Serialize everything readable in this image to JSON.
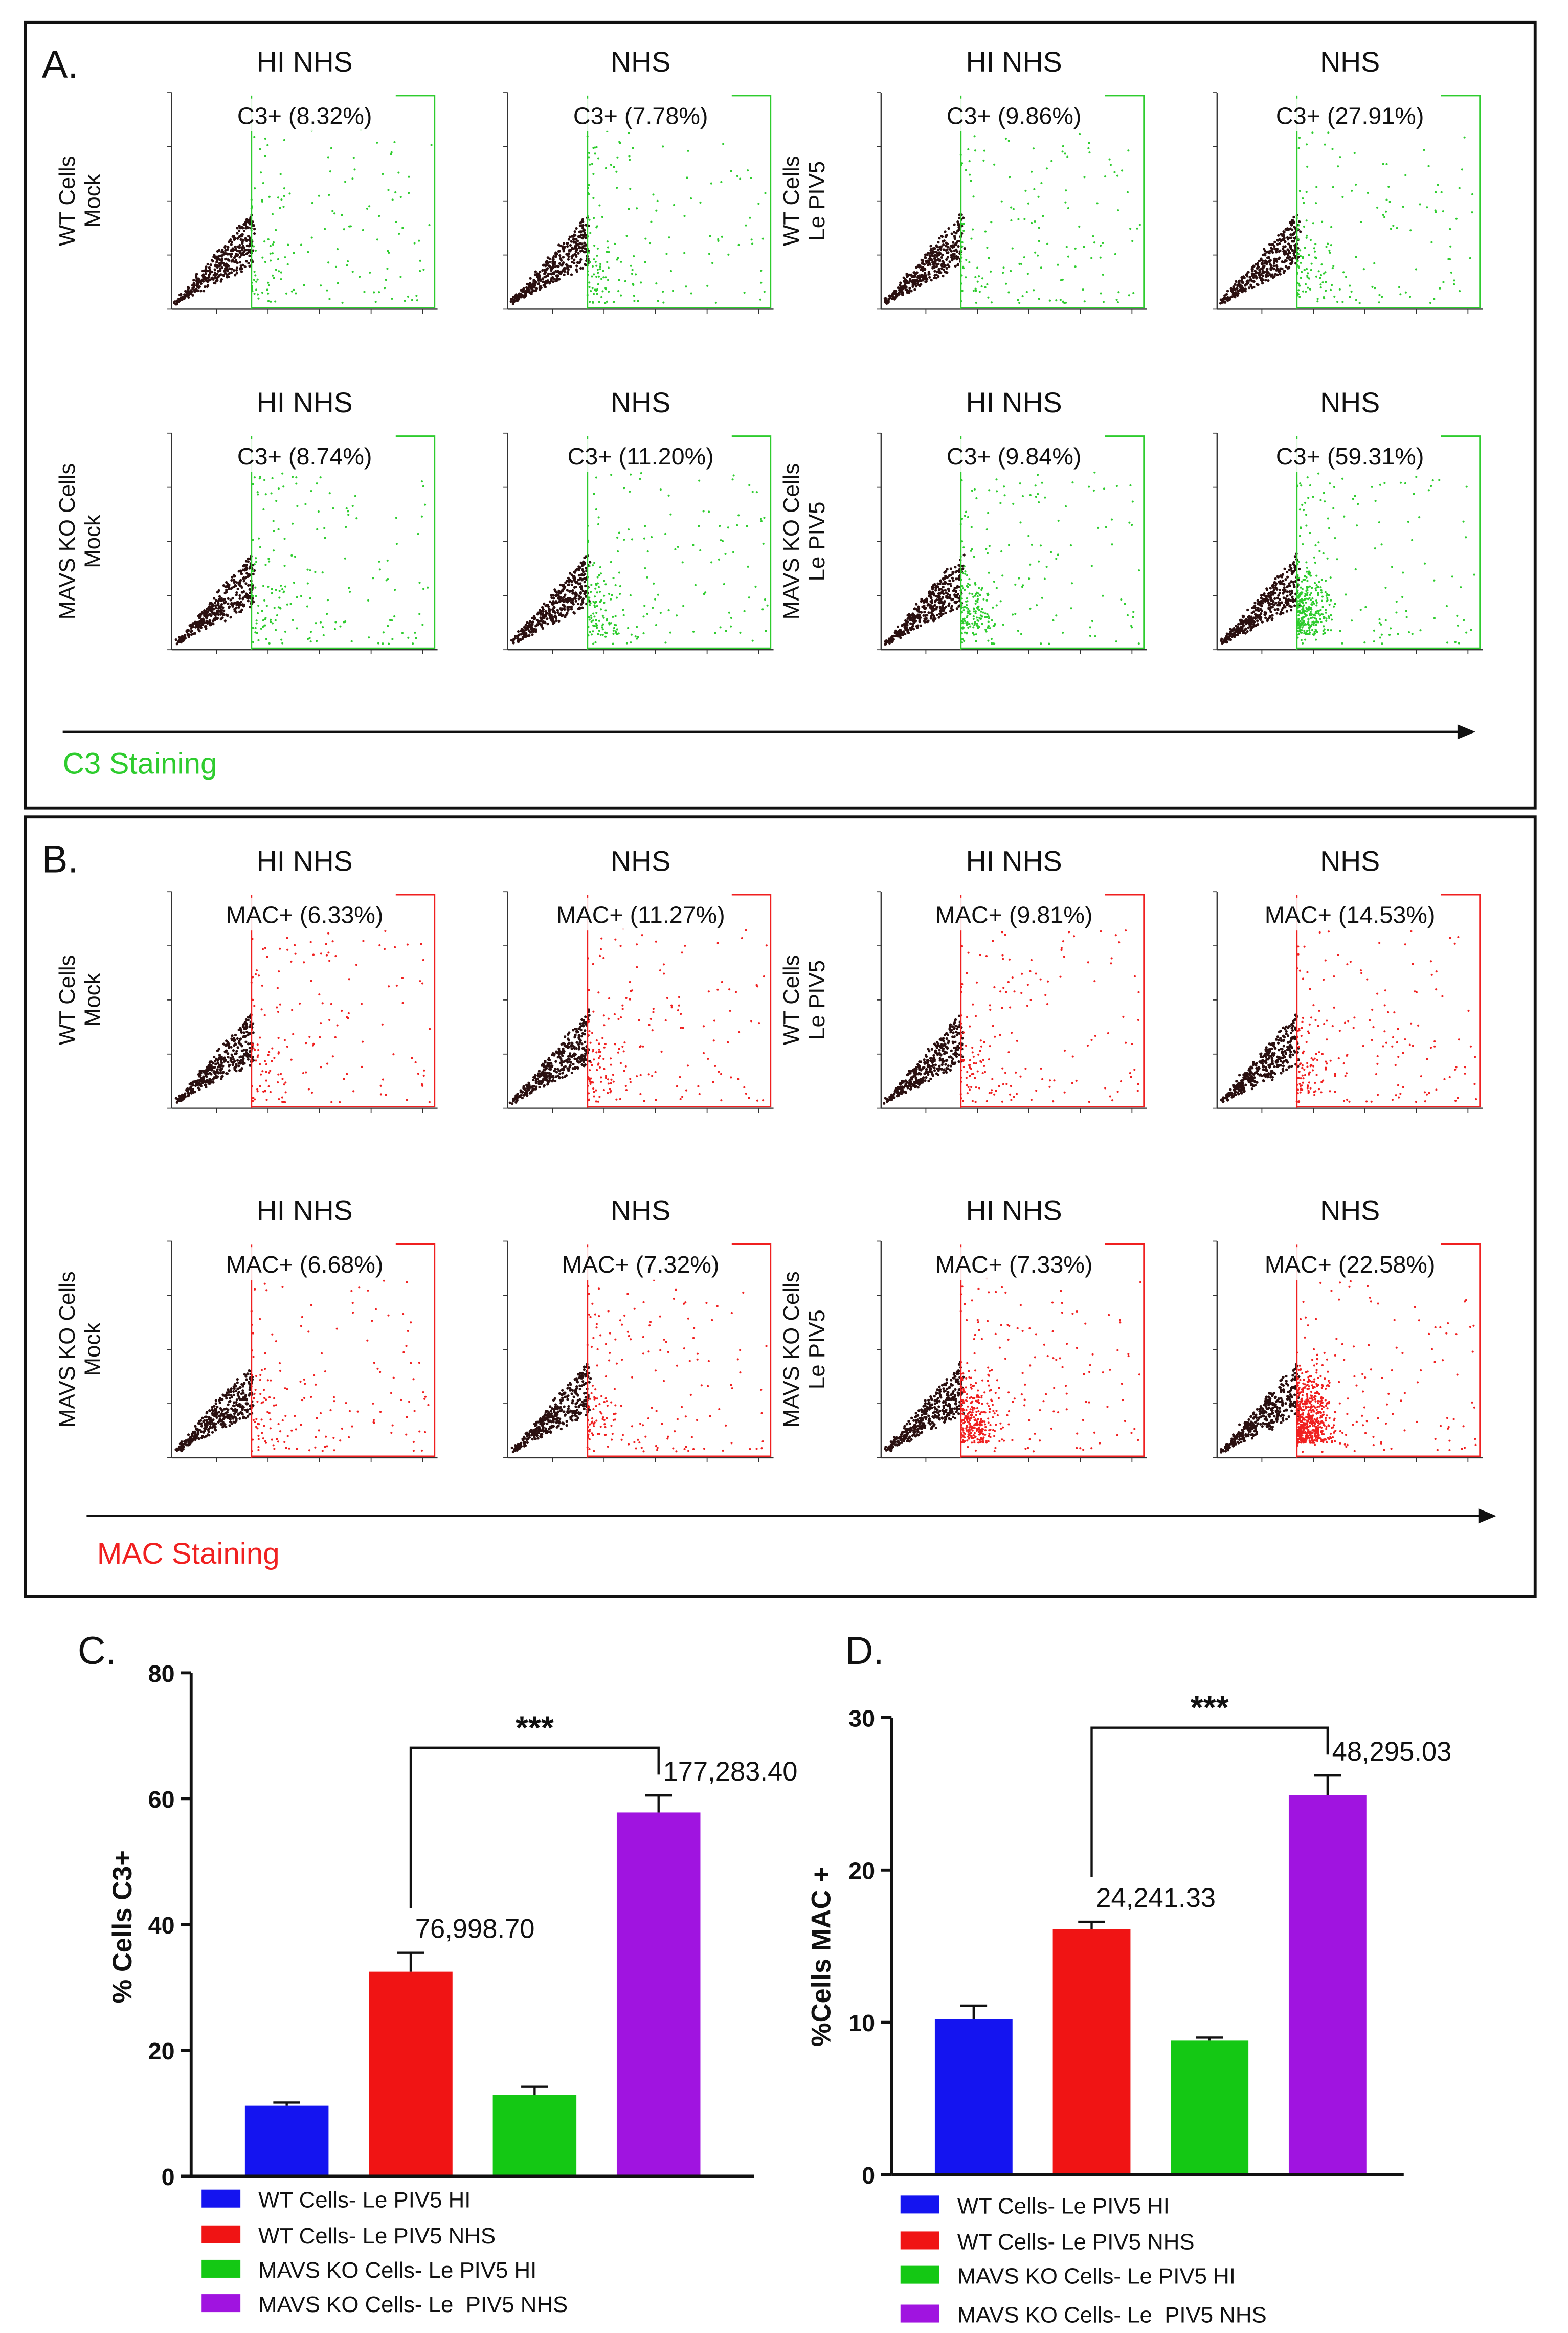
{
  "panels": [
    {
      "label": "A.",
      "stain_label": "C3 Staining",
      "stain_color": "#2ecc2e",
      "rows": [
        {
          "groups": [
            {
              "row_label": [
                "WT Cells",
                "Mock"
              ],
              "plots": [
                {
                  "title": "HI NHS",
                  "gate": "C3+ (8.32%)"
                },
                {
                  "title": "NHS",
                  "gate": "C3+ (7.78%)"
                }
              ]
            },
            {
              "row_label": [
                "WT Cells",
                "Le PIV5"
              ],
              "plots": [
                {
                  "title": "HI NHS",
                  "gate": "C3+ (9.86%)"
                },
                {
                  "title": "NHS",
                  "gate": "C3+ (27.91%)"
                }
              ]
            }
          ]
        },
        {
          "groups": [
            {
              "row_label": [
                "MAVS KO Cells",
                "Mock"
              ],
              "plots": [
                {
                  "title": "HI NHS",
                  "gate": "C3+ (8.74%)"
                },
                {
                  "title": "NHS",
                  "gate": "C3+ (11.20%)"
                }
              ]
            },
            {
              "row_label": [
                "MAVS KO Cells",
                "Le PIV5"
              ],
              "plots": [
                {
                  "title": "HI NHS",
                  "gate": "C3+ (9.84%)"
                },
                {
                  "title": "NHS",
                  "gate": "C3+ (59.31%)"
                }
              ]
            }
          ]
        }
      ]
    },
    {
      "label": "B.",
      "stain_label": "MAC Staining",
      "stain_color": "#f02020",
      "rows": [
        {
          "groups": [
            {
              "row_label": [
                "WT Cells",
                "Mock"
              ],
              "plots": [
                {
                  "title": "HI NHS",
                  "gate": "MAC+ (6.33%)"
                },
                {
                  "title": "NHS",
                  "gate": "MAC+ (11.27%)"
                }
              ]
            },
            {
              "row_label": [
                "WT Cells",
                "Le PIV5"
              ],
              "plots": [
                {
                  "title": "HI NHS",
                  "gate": "MAC+ (9.81%)"
                },
                {
                  "title": "NHS",
                  "gate": "MAC+ (14.53%)"
                }
              ]
            }
          ]
        },
        {
          "groups": [
            {
              "row_label": [
                "MAVS KO Cells",
                "Mock"
              ],
              "plots": [
                {
                  "title": "HI NHS",
                  "gate": "MAC+ (6.68%)"
                },
                {
                  "title": "NHS",
                  "gate": "MAC+ (7.32%)"
                }
              ]
            },
            {
              "row_label": [
                "MAVS KO Cells",
                "Le PIV5"
              ],
              "plots": [
                {
                  "title": "HI NHS",
                  "gate": "MAC+ (7.33%)"
                },
                {
                  "title": "NHS",
                  "gate": "MAC+ (22.58%)"
                }
              ]
            }
          ]
        }
      ]
    }
  ],
  "chart_data": [
    {
      "type": "bar",
      "panel_label": "C.",
      "ylabel": "% Cells C3+",
      "ylim": [
        0,
        80
      ],
      "yticks": [
        0,
        20,
        40,
        60,
        80
      ],
      "significance": "***",
      "series": [
        {
          "name": "WT Cells- Le PIV5 HI",
          "color": "#1414f0",
          "values": [
            11.2
          ],
          "errors": [
            0.5
          ]
        },
        {
          "name": "WT Cells- Le PIV5 NHS",
          "color": "#f01414",
          "values": [
            32.5
          ],
          "errors": [
            3.0
          ],
          "annotation": "76,998.70"
        },
        {
          "name": "MAVS KO Cells- Le PIV5 HI",
          "color": "#14c814",
          "values": [
            12.9
          ],
          "errors": [
            1.3
          ]
        },
        {
          "name": "MAVS KO Cells- Le  PIV5 NHS",
          "color": "#a014e0",
          "values": [
            57.8
          ],
          "errors": [
            2.7
          ],
          "annotation": "177,283.40"
        }
      ]
    },
    {
      "type": "bar",
      "panel_label": "D.",
      "ylabel": "%Cells MAC +",
      "ylim": [
        0,
        30
      ],
      "yticks": [
        0,
        10,
        20,
        30
      ],
      "significance": "***",
      "series": [
        {
          "name": "WT Cells- Le PIV5 HI",
          "color": "#1414f0",
          "values": [
            10.2
          ],
          "errors": [
            0.9
          ]
        },
        {
          "name": "WT Cells- Le PIV5 NHS",
          "color": "#f01414",
          "values": [
            16.1
          ],
          "errors": [
            0.5
          ],
          "annotation": "24,241.33"
        },
        {
          "name": "MAVS KO Cells- Le PIV5 HI",
          "color": "#14c814",
          "values": [
            8.8
          ],
          "errors": [
            0.2
          ]
        },
        {
          "name": "MAVS KO Cells- Le  PIV5 NHS",
          "color": "#a014e0",
          "values": [
            24.9
          ],
          "errors": [
            1.3
          ],
          "annotation": "48,295.03"
        }
      ]
    }
  ]
}
